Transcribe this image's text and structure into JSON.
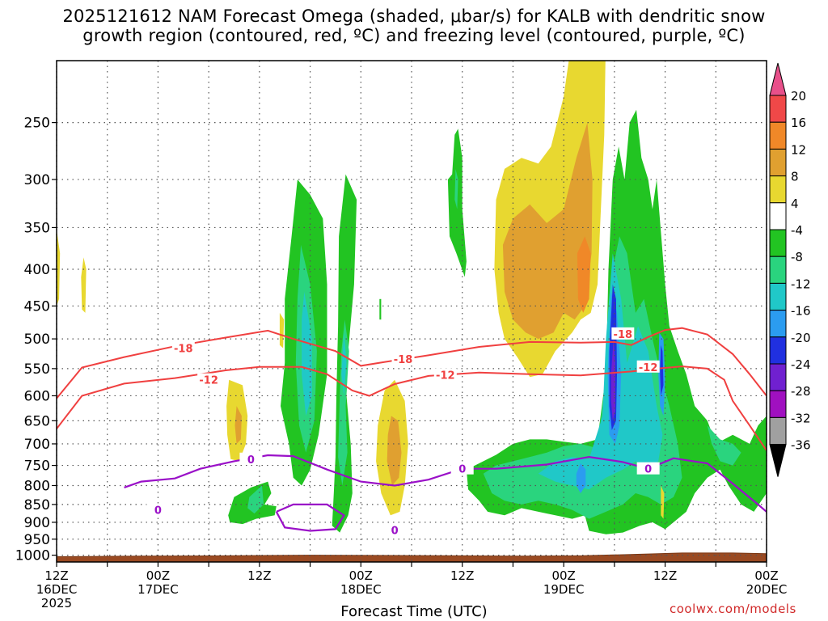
{
  "chart_data": {
    "type": "heatmap",
    "title_line1": "2025121612 NAM Forecast Omega (shaded, μbar/s) for KALB with dendritic snow",
    "title_line2": "growth region (contoured, red, ºC) and freezing level (contoured, purple, ºC)",
    "xlabel": "Forecast Time (UTC)",
    "ylabel": "",
    "y_ticks": [
      "250",
      "300",
      "350",
      "400",
      "450",
      "500",
      "550",
      "600",
      "650",
      "700",
      "750",
      "800",
      "850",
      "900",
      "950",
      "1000"
    ],
    "y_tick_values": [
      250,
      300,
      350,
      400,
      450,
      500,
      550,
      600,
      650,
      700,
      750,
      800,
      850,
      900,
      950,
      1000
    ],
    "y_axis": "pressure (hPa), log scale, 200 top to 1025 bottom",
    "x_ticks": [
      {
        "hour": 0,
        "label1": "12Z",
        "label2": "16DEC",
        "label3": "2025"
      },
      {
        "hour": 12,
        "label1": "00Z",
        "label2": "17DEC",
        "label3": ""
      },
      {
        "hour": 24,
        "label1": "12Z",
        "label2": "",
        "label3": ""
      },
      {
        "hour": 36,
        "label1": "00Z",
        "label2": "18DEC",
        "label3": ""
      },
      {
        "hour": 48,
        "label1": "12Z",
        "label2": "",
        "label3": ""
      },
      {
        "hour": 60,
        "label1": "00Z",
        "label2": "19DEC",
        "label3": ""
      },
      {
        "hour": 72,
        "label1": "12Z",
        "label2": "",
        "label3": ""
      },
      {
        "hour": 84,
        "label1": "00Z",
        "label2": "20DEC",
        "label3": ""
      }
    ],
    "colorbar": {
      "levels": [
        20,
        16,
        12,
        8,
        4,
        -4,
        -8,
        -12,
        -16,
        -20,
        -24,
        -28,
        -32,
        -36
      ],
      "colors": [
        "#e8508a",
        "#f04848",
        "#f08828",
        "#e0a030",
        "#e8d830",
        "#ffffff",
        "#22c422",
        "#2ad47e",
        "#20c8c8",
        "#2b9cf0",
        "#2030e0",
        "#7020d0",
        "#a010c0",
        "#a0a0a0",
        "#000000"
      ]
    },
    "contour_labels": {
      "dgz_cold": "-18",
      "dgz_warm": "-12",
      "freezing": "0"
    },
    "red_contour_minus18": [
      [
        0,
        605
      ],
      [
        3,
        548
      ],
      [
        8,
        530
      ],
      [
        14,
        512
      ],
      [
        20,
        498
      ],
      [
        25,
        487
      ],
      [
        28,
        500
      ],
      [
        33,
        520
      ],
      [
        36,
        545
      ],
      [
        39,
        538
      ],
      [
        44,
        527
      ],
      [
        50,
        513
      ],
      [
        56,
        505
      ],
      [
        62,
        506
      ],
      [
        66,
        505
      ],
      [
        68,
        510
      ],
      [
        70,
        497
      ],
      [
        72,
        486
      ],
      [
        74,
        483
      ],
      [
        77,
        493
      ],
      [
        80,
        525
      ],
      [
        82,
        560
      ],
      [
        84,
        600
      ]
    ],
    "red_contour_minus12": [
      [
        0,
        667
      ],
      [
        3,
        600
      ],
      [
        8,
        577
      ],
      [
        14,
        567
      ],
      [
        20,
        553
      ],
      [
        24,
        547
      ],
      [
        29,
        547
      ],
      [
        32,
        560
      ],
      [
        35,
        590
      ],
      [
        37,
        600
      ],
      [
        40,
        578
      ],
      [
        44,
        563
      ],
      [
        50,
        557
      ],
      [
        56,
        560
      ],
      [
        62,
        562
      ],
      [
        68,
        555
      ],
      [
        71,
        550
      ],
      [
        74,
        546
      ],
      [
        77,
        550
      ],
      [
        79,
        570
      ],
      [
        80,
        610
      ],
      [
        82,
        660
      ],
      [
        84,
        715
      ]
    ],
    "purple_contour_0": [
      [
        8,
        805
      ],
      [
        10,
        790
      ],
      [
        14,
        782
      ],
      [
        17,
        758
      ],
      [
        21,
        740
      ],
      [
        25,
        726
      ],
      [
        28,
        728
      ],
      [
        32,
        760
      ],
      [
        36,
        790
      ],
      [
        40,
        800
      ],
      [
        44,
        785
      ],
      [
        48,
        758
      ],
      [
        52,
        758
      ],
      [
        58,
        748
      ],
      [
        63,
        730
      ],
      [
        67,
        742
      ],
      [
        70,
        758
      ],
      [
        73,
        733
      ],
      [
        77,
        745
      ],
      [
        80,
        795
      ],
      [
        83,
        850
      ],
      [
        84,
        870
      ]
    ],
    "purple_loop_lower": [
      [
        26,
        870
      ],
      [
        28,
        850
      ],
      [
        32,
        850
      ],
      [
        34,
        880
      ],
      [
        33,
        920
      ],
      [
        30,
        925
      ],
      [
        27,
        915
      ],
      [
        26,
        870
      ]
    ],
    "omega_shaded_regions": [
      {
        "name": "yellow upper column (4 to 12)",
        "value": 8
      },
      {
        "name": "orange core near 400 hPa (12 to 16)",
        "value": 14
      },
      {
        "name": "blue-purple core near 500 to 650 hPa (-20 to -28)",
        "value": -24
      },
      {
        "name": "green ascent columns (-4 to -12)",
        "value": -8
      }
    ],
    "terrain": "surface shaded brown near 1000 hPa"
  },
  "watermark": "coolwx.com/models"
}
